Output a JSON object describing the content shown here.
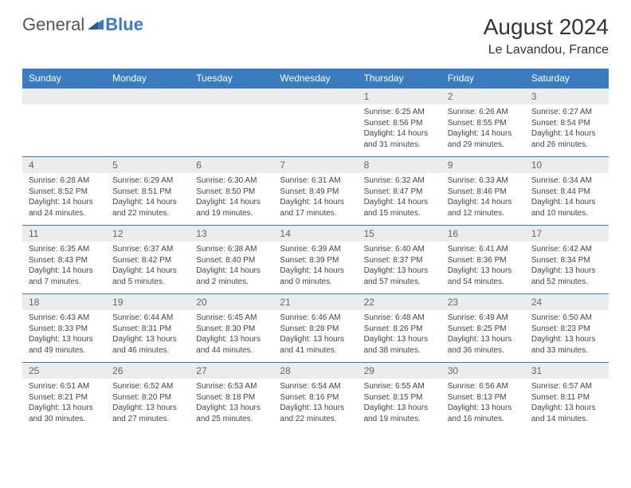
{
  "logo": {
    "text1": "General",
    "text2": "Blue"
  },
  "title": "August 2024",
  "location": "Le Lavandou, France",
  "colors": {
    "header_bg": "#3b7bbf",
    "header_text": "#ffffff",
    "daynum_bg": "#ececec",
    "daynum_text": "#666666",
    "body_text": "#444444",
    "border": "#3b7bbf",
    "page_bg": "#ffffff"
  },
  "weekdays": [
    "Sunday",
    "Monday",
    "Tuesday",
    "Wednesday",
    "Thursday",
    "Friday",
    "Saturday"
  ],
  "weeks": [
    [
      null,
      null,
      null,
      null,
      {
        "n": "1",
        "sr": "6:25 AM",
        "ss": "8:56 PM",
        "dl": "14 hours and 31 minutes."
      },
      {
        "n": "2",
        "sr": "6:26 AM",
        "ss": "8:55 PM",
        "dl": "14 hours and 29 minutes."
      },
      {
        "n": "3",
        "sr": "6:27 AM",
        "ss": "8:54 PM",
        "dl": "14 hours and 26 minutes."
      }
    ],
    [
      {
        "n": "4",
        "sr": "6:28 AM",
        "ss": "8:52 PM",
        "dl": "14 hours and 24 minutes."
      },
      {
        "n": "5",
        "sr": "6:29 AM",
        "ss": "8:51 PM",
        "dl": "14 hours and 22 minutes."
      },
      {
        "n": "6",
        "sr": "6:30 AM",
        "ss": "8:50 PM",
        "dl": "14 hours and 19 minutes."
      },
      {
        "n": "7",
        "sr": "6:31 AM",
        "ss": "8:49 PM",
        "dl": "14 hours and 17 minutes."
      },
      {
        "n": "8",
        "sr": "6:32 AM",
        "ss": "8:47 PM",
        "dl": "14 hours and 15 minutes."
      },
      {
        "n": "9",
        "sr": "6:33 AM",
        "ss": "8:46 PM",
        "dl": "14 hours and 12 minutes."
      },
      {
        "n": "10",
        "sr": "6:34 AM",
        "ss": "8:44 PM",
        "dl": "14 hours and 10 minutes."
      }
    ],
    [
      {
        "n": "11",
        "sr": "6:35 AM",
        "ss": "8:43 PM",
        "dl": "14 hours and 7 minutes."
      },
      {
        "n": "12",
        "sr": "6:37 AM",
        "ss": "8:42 PM",
        "dl": "14 hours and 5 minutes."
      },
      {
        "n": "13",
        "sr": "6:38 AM",
        "ss": "8:40 PM",
        "dl": "14 hours and 2 minutes."
      },
      {
        "n": "14",
        "sr": "6:39 AM",
        "ss": "8:39 PM",
        "dl": "14 hours and 0 minutes."
      },
      {
        "n": "15",
        "sr": "6:40 AM",
        "ss": "8:37 PM",
        "dl": "13 hours and 57 minutes."
      },
      {
        "n": "16",
        "sr": "6:41 AM",
        "ss": "8:36 PM",
        "dl": "13 hours and 54 minutes."
      },
      {
        "n": "17",
        "sr": "6:42 AM",
        "ss": "8:34 PM",
        "dl": "13 hours and 52 minutes."
      }
    ],
    [
      {
        "n": "18",
        "sr": "6:43 AM",
        "ss": "8:33 PM",
        "dl": "13 hours and 49 minutes."
      },
      {
        "n": "19",
        "sr": "6:44 AM",
        "ss": "8:31 PM",
        "dl": "13 hours and 46 minutes."
      },
      {
        "n": "20",
        "sr": "6:45 AM",
        "ss": "8:30 PM",
        "dl": "13 hours and 44 minutes."
      },
      {
        "n": "21",
        "sr": "6:46 AM",
        "ss": "8:28 PM",
        "dl": "13 hours and 41 minutes."
      },
      {
        "n": "22",
        "sr": "6:48 AM",
        "ss": "8:26 PM",
        "dl": "13 hours and 38 minutes."
      },
      {
        "n": "23",
        "sr": "6:49 AM",
        "ss": "8:25 PM",
        "dl": "13 hours and 36 minutes."
      },
      {
        "n": "24",
        "sr": "6:50 AM",
        "ss": "8:23 PM",
        "dl": "13 hours and 33 minutes."
      }
    ],
    [
      {
        "n": "25",
        "sr": "6:51 AM",
        "ss": "8:21 PM",
        "dl": "13 hours and 30 minutes."
      },
      {
        "n": "26",
        "sr": "6:52 AM",
        "ss": "8:20 PM",
        "dl": "13 hours and 27 minutes."
      },
      {
        "n": "27",
        "sr": "6:53 AM",
        "ss": "8:18 PM",
        "dl": "13 hours and 25 minutes."
      },
      {
        "n": "28",
        "sr": "6:54 AM",
        "ss": "8:16 PM",
        "dl": "13 hours and 22 minutes."
      },
      {
        "n": "29",
        "sr": "6:55 AM",
        "ss": "8:15 PM",
        "dl": "13 hours and 19 minutes."
      },
      {
        "n": "30",
        "sr": "6:56 AM",
        "ss": "8:13 PM",
        "dl": "13 hours and 16 minutes."
      },
      {
        "n": "31",
        "sr": "6:57 AM",
        "ss": "8:11 PM",
        "dl": "13 hours and 14 minutes."
      }
    ]
  ],
  "labels": {
    "sunrise": "Sunrise:",
    "sunset": "Sunset:",
    "daylight": "Daylight:"
  }
}
